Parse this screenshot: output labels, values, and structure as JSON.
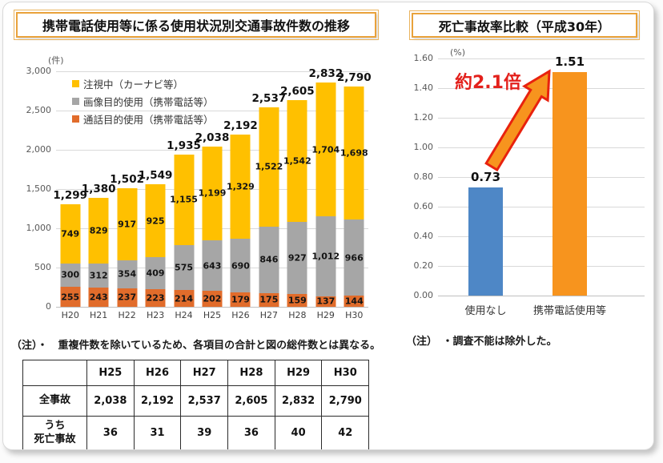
{
  "notes": {
    "left": "（注）・　重複件数を除いているため、各項目の合計と図の総件数とは異なる。",
    "right": "（注）　・調査不能は除外した。"
  },
  "colors": {
    "gaze_yellow": "#ffc000",
    "image_gray": "#a6a6a6",
    "call_orange": "#e16c2b",
    "no_use_blue": "#4e87c6",
    "phone_use_orange": "#f7941e",
    "title_border": "#e9a23b",
    "annotation_red": "#e3201b",
    "arrow_stroke": "#e8220e"
  },
  "chart_data": [
    {
      "type": "bar",
      "stacked": true,
      "title": "携帯電話使用等に係る使用状況別交通事故件数の推移",
      "unit_label": "(件)",
      "ylim": [
        0,
        3000
      ],
      "ytick_step": 500,
      "grid": true,
      "legend_position": "top-left-inside",
      "categories": [
        "H20",
        "H21",
        "H22",
        "H23",
        "H24",
        "H25",
        "H26",
        "H27",
        "H28",
        "H29",
        "H30"
      ],
      "series": [
        {
          "name": "通話目的使用（携帯電話等）",
          "color": "#e16c2b",
          "values": [
            255,
            243,
            237,
            223,
            214,
            202,
            179,
            175,
            159,
            137,
            144
          ]
        },
        {
          "name": "画像目的使用（携帯電話等）",
          "color": "#a6a6a6",
          "values": [
            300,
            312,
            354,
            409,
            575,
            643,
            690,
            846,
            927,
            1012,
            966
          ]
        },
        {
          "name": "注視中（カーナビ等）",
          "color": "#ffc000",
          "values": [
            749,
            829,
            917,
            925,
            1155,
            1199,
            1329,
            1522,
            1542,
            1704,
            1698
          ]
        }
      ],
      "legend": [
        {
          "label": "注視中（カーナビ等）",
          "color": "#ffc000"
        },
        {
          "label": "画像目的使用（携帯電話等）",
          "color": "#a6a6a6"
        },
        {
          "label": "通話目的使用（携帯電話等）",
          "color": "#e16c2b"
        }
      ],
      "totals": [
        1299,
        1380,
        1502,
        1549,
        1935,
        2038,
        2192,
        2537,
        2605,
        2832,
        2790
      ]
    },
    {
      "type": "bar",
      "title": "死亡事故率比較（平成30年）",
      "unit_label": "(%)",
      "ylim": [
        0,
        1.6
      ],
      "ytick_step": 0.2,
      "grid": true,
      "categories": [
        "使用なし",
        "携帯電話使用等"
      ],
      "values": [
        0.73,
        1.51
      ],
      "value_labels": [
        "0.73",
        "1.51"
      ],
      "colors": [
        "#4e87c6",
        "#f7941e"
      ],
      "annotation": "約2.1倍"
    },
    {
      "type": "table",
      "columns": [
        "",
        "H25",
        "H26",
        "H27",
        "H28",
        "H29",
        "H30"
      ],
      "rows": [
        {
          "label": "全事故",
          "values": [
            "2,038",
            "2,192",
            "2,537",
            "2,605",
            "2,832",
            "2,790"
          ]
        },
        {
          "label": "うち\n死亡事故",
          "values": [
            "36",
            "31",
            "39",
            "36",
            "40",
            "42"
          ]
        }
      ]
    }
  ]
}
